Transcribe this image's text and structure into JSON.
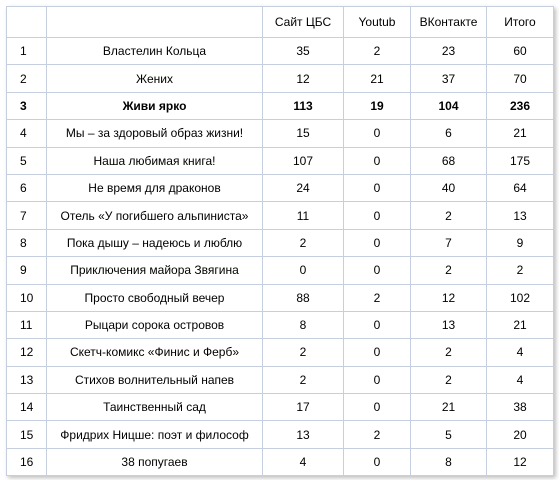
{
  "table": {
    "header": [
      "Сайт ЦБС",
      "Youtub",
      "ВКонтакте",
      "Итого"
    ],
    "rows": [
      {
        "cells": [
          1,
          "Властелин Кольца",
          35,
          2,
          23,
          60
        ]
      },
      {
        "cells": [
          2,
          "Жених",
          12,
          21,
          37,
          70
        ]
      },
      {
        "cells": [
          3,
          "Живи ярко",
          113,
          19,
          104,
          236
        ],
        "bold": true
      },
      {
        "cells": [
          4,
          "Мы – за здоровый образ жизни!",
          15,
          0,
          6,
          21
        ]
      },
      {
        "cells": [
          5,
          "Наша любимая книга!",
          107,
          0,
          68,
          175
        ]
      },
      {
        "cells": [
          6,
          "Не время для драконов",
          24,
          0,
          40,
          64
        ]
      },
      {
        "cells": [
          7,
          "Отель «У погибшего альпиниста»",
          11,
          0,
          2,
          13
        ]
      },
      {
        "cells": [
          8,
          "Пока дышу – надеюсь и люблю",
          2,
          0,
          7,
          9
        ]
      },
      {
        "cells": [
          9,
          "Приключения майора Звягина",
          0,
          0,
          2,
          2
        ]
      },
      {
        "cells": [
          10,
          "Просто свободный вечер",
          88,
          2,
          12,
          102
        ]
      },
      {
        "cells": [
          11,
          "Рыцари сорока островов",
          8,
          0,
          13,
          21
        ]
      },
      {
        "cells": [
          12,
          "Скетч-комикс «Финис и Ферб»",
          2,
          0,
          2,
          4
        ]
      },
      {
        "cells": [
          13,
          "Стихов волнительный напев",
          2,
          0,
          2,
          4
        ]
      },
      {
        "cells": [
          14,
          "Таинственный сад",
          17,
          0,
          21,
          38
        ]
      },
      {
        "cells": [
          15,
          "Фридрих Ницше: поэт и философ",
          13,
          2,
          5,
          20
        ]
      },
      {
        "cells": [
          16,
          "38 попугаев",
          4,
          0,
          8,
          12
        ]
      }
    ]
  }
}
